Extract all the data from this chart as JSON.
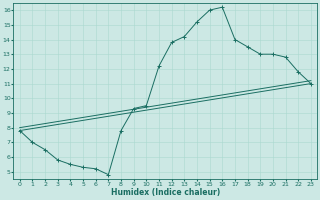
{
  "xlabel": "Humidex (Indice chaleur)",
  "background_color": "#cce8e4",
  "line_color": "#1a6e62",
  "xlim": [
    -0.5,
    23.5
  ],
  "ylim": [
    4.5,
    16.5
  ],
  "xticks": [
    0,
    1,
    2,
    3,
    4,
    5,
    6,
    7,
    8,
    9,
    10,
    11,
    12,
    13,
    14,
    15,
    16,
    17,
    18,
    19,
    20,
    21,
    22,
    23
  ],
  "yticks": [
    5,
    6,
    7,
    8,
    9,
    10,
    11,
    12,
    13,
    14,
    15,
    16
  ],
  "line1_x": [
    0,
    1,
    2,
    3,
    4,
    5,
    6,
    7,
    8,
    9,
    10,
    11,
    12,
    13,
    14,
    15,
    16,
    17,
    18,
    19,
    20,
    21,
    22,
    23
  ],
  "line1_y": [
    7.8,
    7.0,
    6.5,
    5.8,
    5.5,
    5.3,
    5.2,
    4.8,
    7.8,
    9.3,
    9.5,
    12.2,
    13.8,
    14.2,
    15.2,
    16.0,
    16.2,
    14.0,
    13.5,
    13.0,
    13.0,
    12.8,
    11.8,
    11.0
  ],
  "line2_x": [
    0,
    23
  ],
  "line2_y": [
    7.8,
    11.0
  ],
  "line3_x": [
    0,
    23
  ],
  "line3_y": [
    8.0,
    11.2
  ],
  "grid_color": "#aad8d0",
  "marker": "+"
}
